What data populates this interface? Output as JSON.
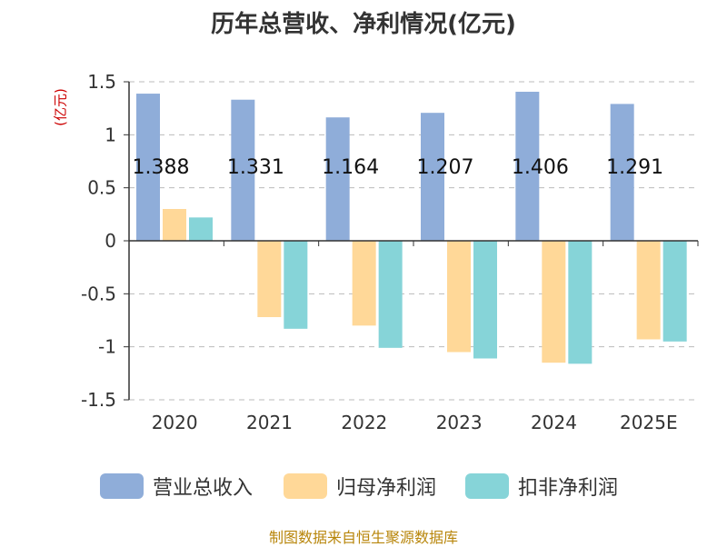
{
  "chart_data": {
    "type": "bar",
    "title": "历年总营收、净利情况(亿元)",
    "unit_label": "(亿元)",
    "categories": [
      "2020",
      "2021",
      "2022",
      "2023",
      "2024",
      "2025E"
    ],
    "series": [
      {
        "name": "营业总收入",
        "color": "#8fadd9",
        "values": [
          1.388,
          1.331,
          1.164,
          1.207,
          1.406,
          1.291
        ]
      },
      {
        "name": "归母净利润",
        "color": "#ffd898",
        "values": [
          0.3,
          -0.72,
          -0.8,
          -1.05,
          -1.15,
          -0.93
        ]
      },
      {
        "name": "扣非净利润",
        "color": "#86d4d8",
        "values": [
          0.22,
          -0.83,
          -1.01,
          -1.11,
          -1.16,
          -0.95
        ]
      }
    ],
    "data_labels": [
      "1.388",
      "1.331",
      "1.164",
      "1.207",
      "1.406",
      "1.291"
    ],
    "yticks": [
      "1.5",
      "1",
      "0.5",
      "0",
      "-0.5",
      "-1",
      "-1.5"
    ],
    "ylim": [
      -1.5,
      1.5
    ],
    "grid": true,
    "legend_position": "bottom"
  },
  "source": "制图数据来自恒生聚源数据库"
}
